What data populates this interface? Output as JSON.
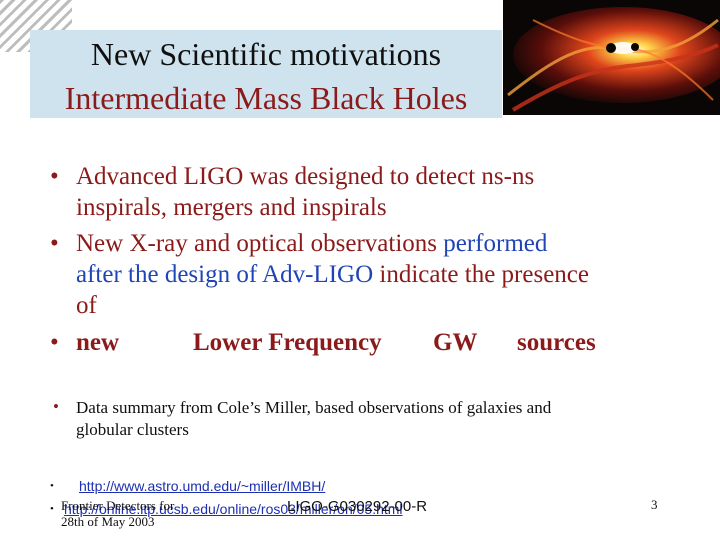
{
  "title": {
    "line1": "New Scientific motivations",
    "line2": "Intermediate Mass Black Holes"
  },
  "bullets": [
    {
      "lines": [
        "Advanced LIGO was designed to detect ns-ns",
        "inspirals, mergers and inspirals"
      ]
    },
    {
      "line1_a": "New  X-ray and optical observations ",
      "line1_b": "performed",
      "line2_a": "after the design of Adv-LIGO",
      "line2_b": " indicate the presence",
      "line3": "of"
    },
    {
      "words": [
        "new",
        "Lower Frequency",
        "GW",
        "sources"
      ]
    },
    {
      "lines": [
        "Data summary from Cole’s Miller, based observations of galaxies and",
        "globular clusters"
      ]
    }
  ],
  "links": [
    "http://www.astro.umd.edu/~miller/IMBH/",
    "http://online.itp.ucsb.edu/online/ros03/miller/oh/05.html"
  ],
  "footer": {
    "left_line1": "Frontier Detectors for",
    "left_line2": "28th of May 2003",
    "doc_id": "LIGO-G030292-00-R",
    "page_number": "3"
  },
  "bullet_glyph": "•",
  "colors": {
    "accent": "#8b1a1a",
    "highlight": "#1f44b5",
    "title_bg": "#cfe3ee",
    "link": "#1c2fb0"
  },
  "icons": {
    "corner": "diagonal-stripes-decoration",
    "image": "black-hole-merger-illustration"
  }
}
